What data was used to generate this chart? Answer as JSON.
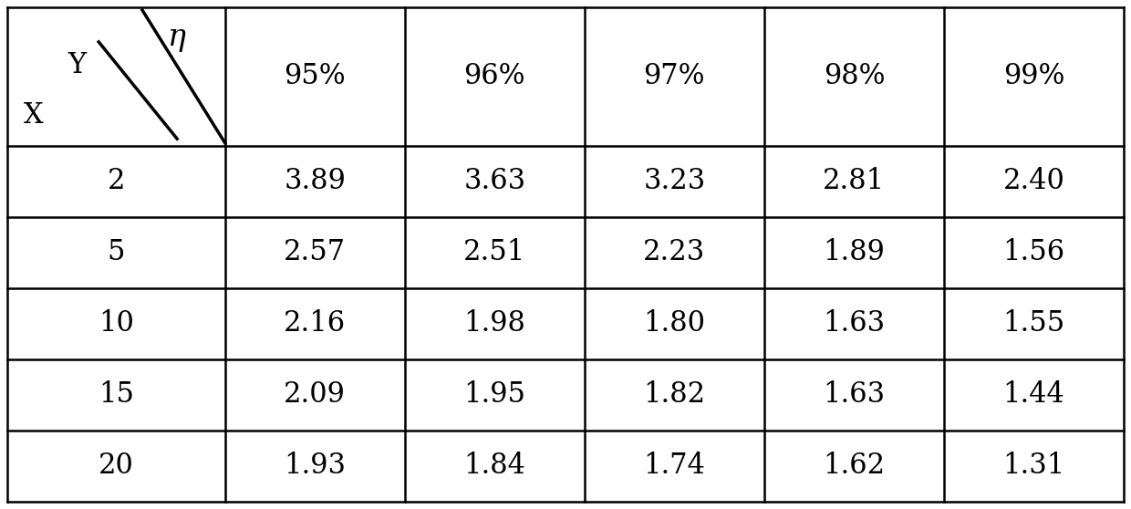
{
  "col_headers": [
    "95%",
    "96%",
    "97%",
    "98%",
    "99%"
  ],
  "row_headers": [
    "2",
    "5",
    "10",
    "15",
    "20"
  ],
  "values": [
    [
      "3.89",
      "3.63",
      "3.23",
      "2.81",
      "2.40"
    ],
    [
      "2.57",
      "2.51",
      "2.23",
      "1.89",
      "1.56"
    ],
    [
      "2.16",
      "1.98",
      "1.80",
      "1.63",
      "1.55"
    ],
    [
      "2.09",
      "1.95",
      "1.82",
      "1.63",
      "1.44"
    ],
    [
      "1.93",
      "1.84",
      "1.74",
      "1.62",
      "1.31"
    ]
  ],
  "corner_eta": "η",
  "corner_Y": "Y",
  "corner_X": "X",
  "background_color": "#ffffff",
  "text_color": "#000000",
  "line_color": "#000000",
  "font_size": 22,
  "header_font_size": 22
}
